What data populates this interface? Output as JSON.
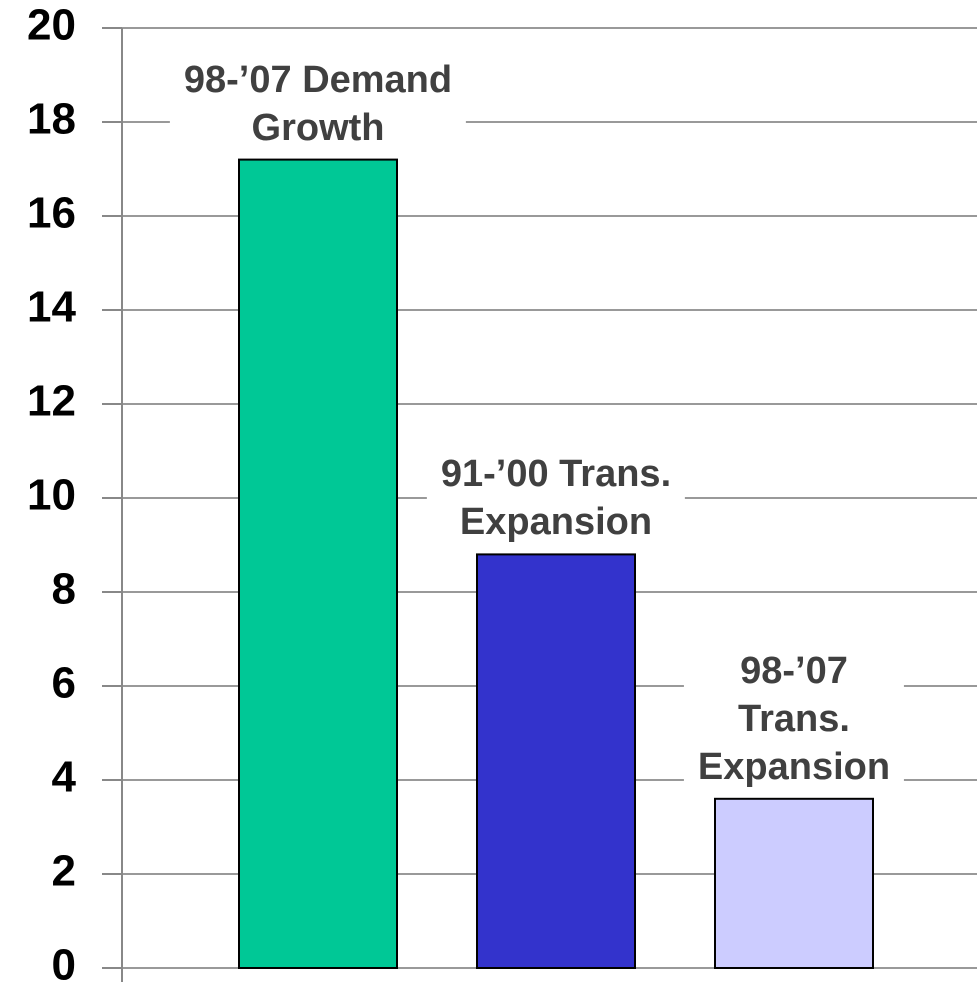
{
  "chart_data": {
    "type": "bar",
    "categories": [
      "98-’07 Demand\nGrowth",
      "91-’00 Trans.\nExpansion",
      "98-’07 Trans.\nExpansion"
    ],
    "values": [
      17.2,
      8.8,
      3.6
    ],
    "colors": [
      "#00c896",
      "#3333cc",
      "#ccccff"
    ],
    "ylim": [
      0,
      20
    ],
    "yticks": [
      0,
      2,
      4,
      6,
      8,
      10,
      12,
      14,
      16,
      18,
      20
    ],
    "grid": true
  }
}
